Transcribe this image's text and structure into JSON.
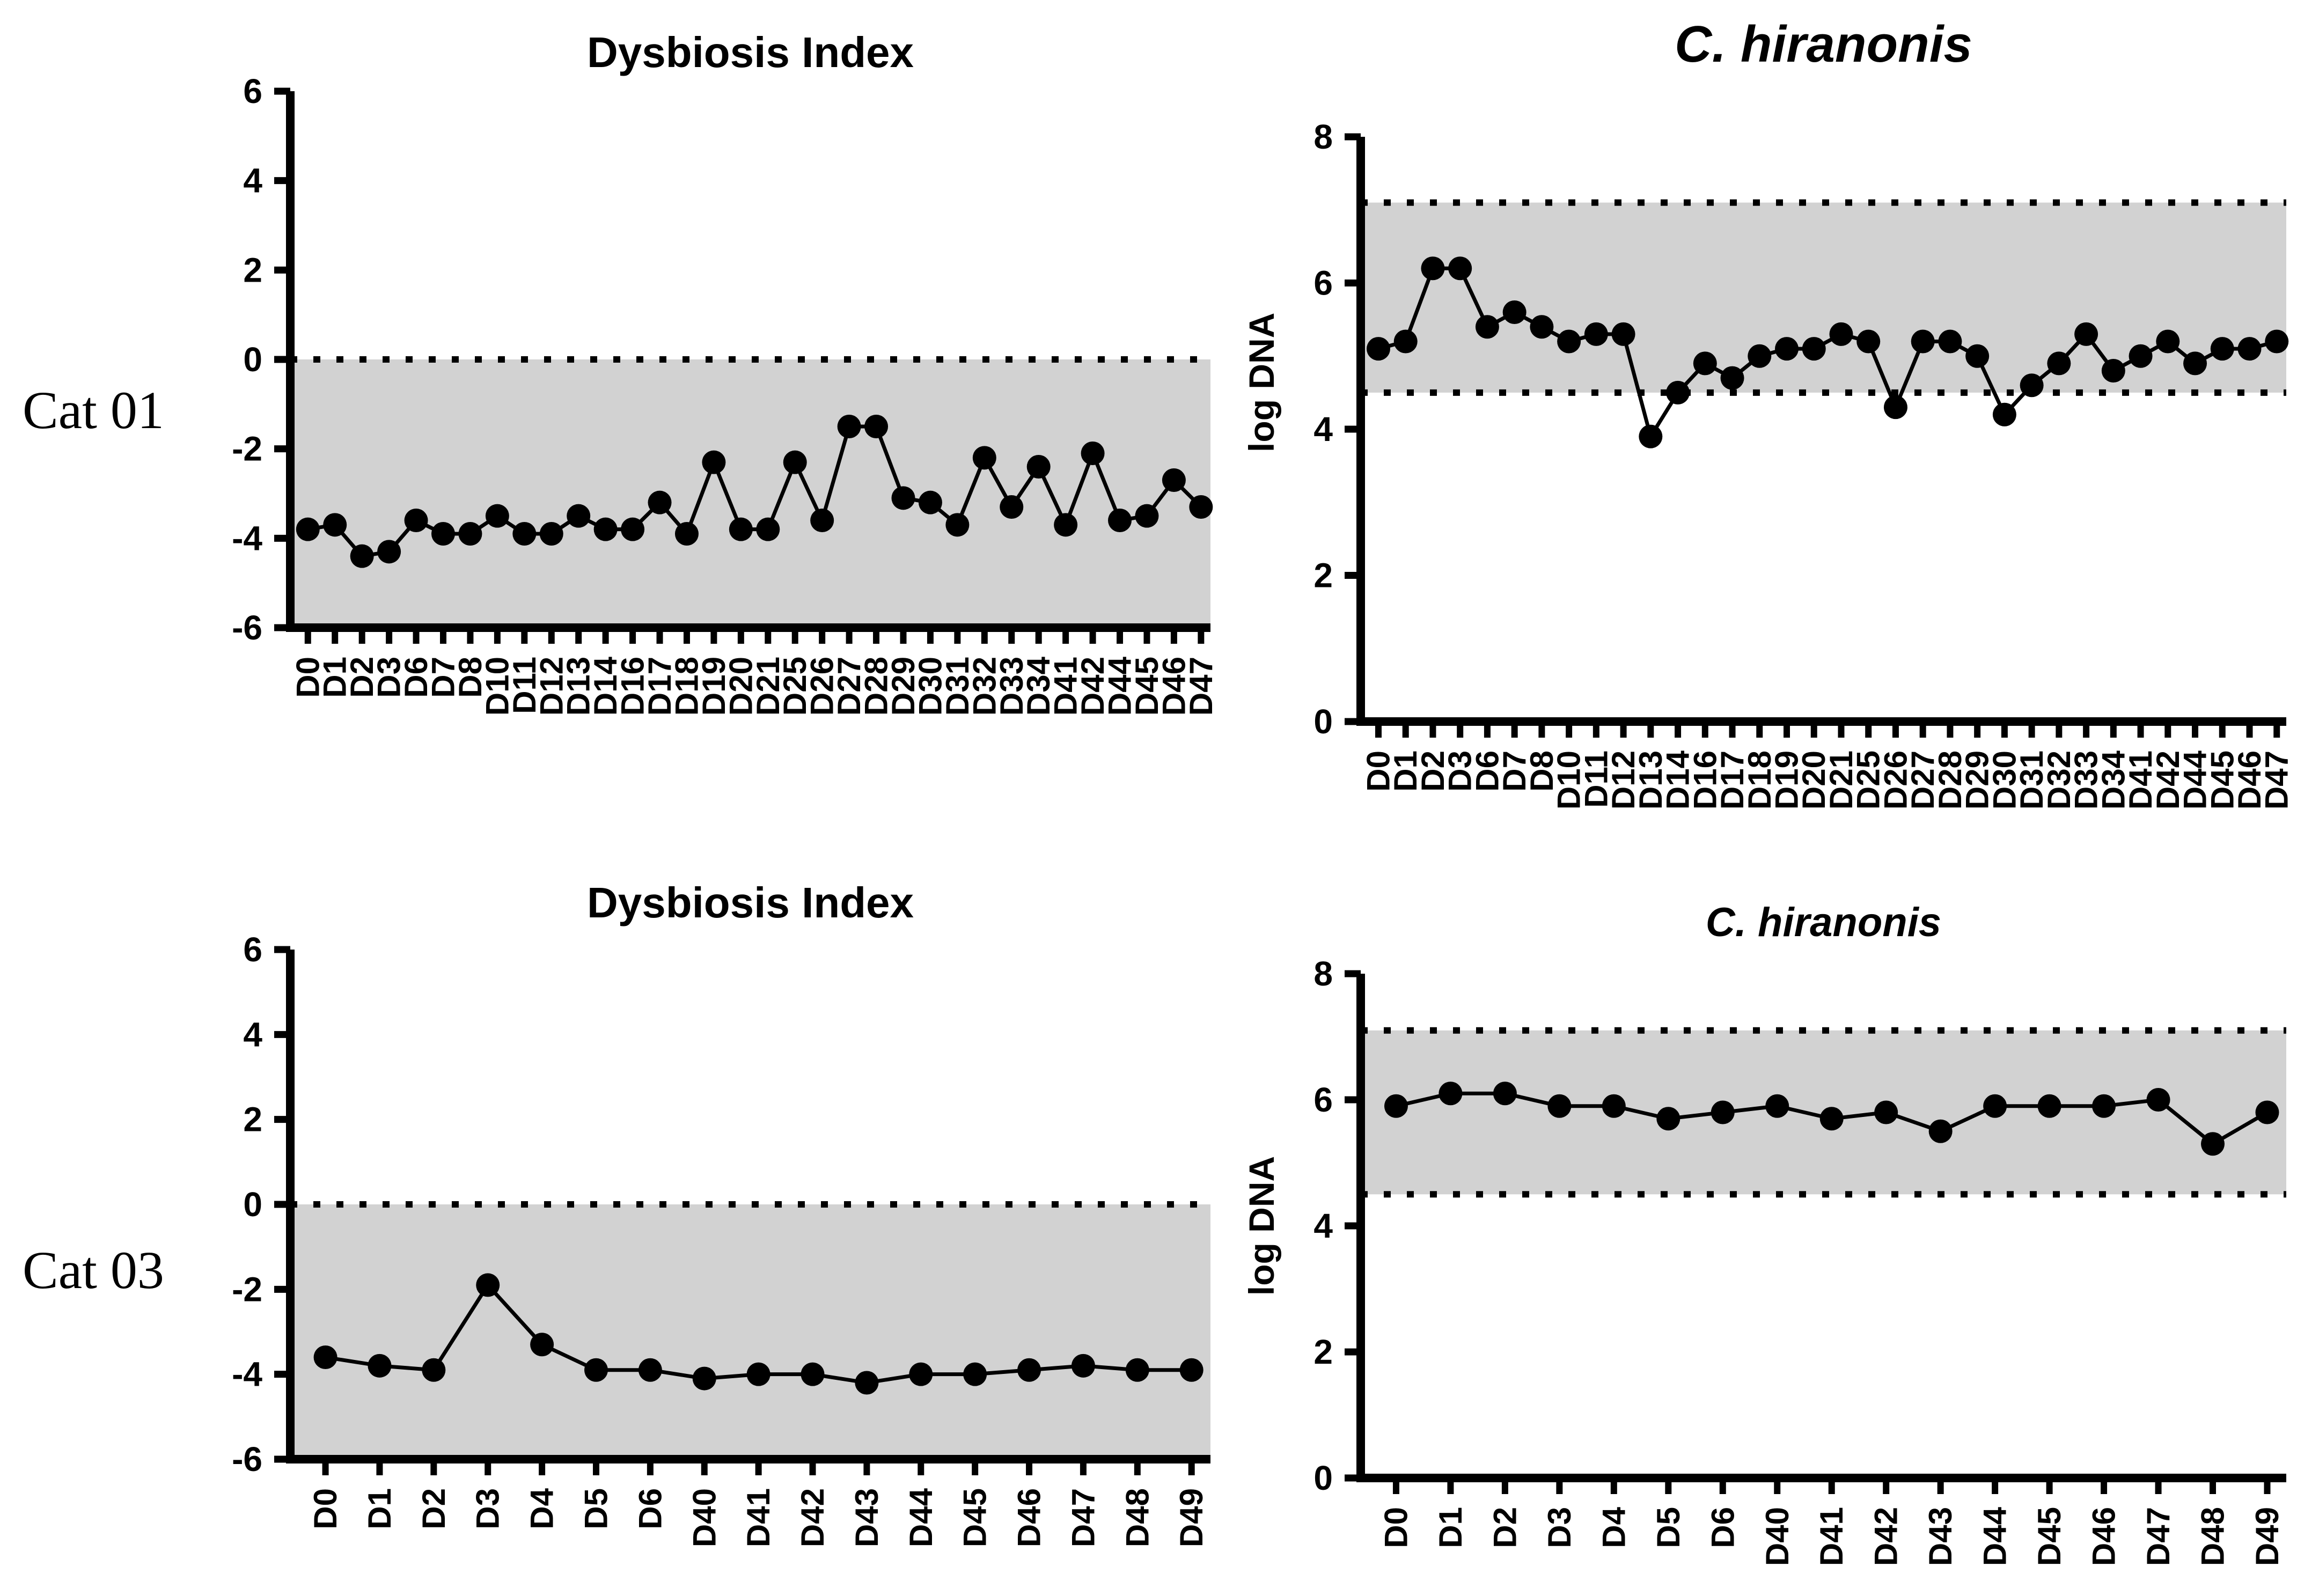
{
  "figure": {
    "background_color": "#ffffff",
    "band_color": "#d2d2d2",
    "line_color": "#000000"
  },
  "rows": [
    {
      "label": "Cat 01"
    },
    {
      "label": "Cat 03"
    }
  ],
  "chart_data": [
    {
      "id": "cat01-dysbiosis-index",
      "type": "line",
      "row_label": "Cat 01",
      "title": "Dysbiosis Index",
      "title_italic": false,
      "xlabel": "",
      "ylabel": "",
      "ylim": [
        -6,
        6
      ],
      "yticks": [
        -6,
        -4,
        -2,
        0,
        2,
        4,
        6
      ],
      "reference_band": [
        -6,
        0
      ],
      "dotted_lines": [
        0
      ],
      "grid": false,
      "legend": false,
      "categories": [
        "D0",
        "D1",
        "D2",
        "D3",
        "D6",
        "D7",
        "D8",
        "D10",
        "D11",
        "D12",
        "D13",
        "D14",
        "D16",
        "D17",
        "D18",
        "D19",
        "D20",
        "D21",
        "D25",
        "D26",
        "D27",
        "D28",
        "D29",
        "D30",
        "D31",
        "D32",
        "D33",
        "D34",
        "D41",
        "D42",
        "D44",
        "D45",
        "D46",
        "D47"
      ],
      "values": [
        -3.8,
        -3.7,
        -4.4,
        -4.3,
        -3.6,
        -3.9,
        -3.9,
        -3.5,
        -3.9,
        -3.9,
        -3.5,
        -3.8,
        -3.8,
        -3.2,
        -3.9,
        -2.3,
        -3.8,
        -3.8,
        -2.3,
        -3.6,
        -1.5,
        -1.5,
        -3.1,
        -3.2,
        -3.7,
        -2.2,
        -3.3,
        -2.4,
        -3.7,
        -2.1,
        -3.6,
        -3.5,
        -2.7,
        -3.3
      ]
    },
    {
      "id": "cat01-c-hiranonis",
      "type": "line",
      "row_label": "Cat 01",
      "title": "C. hiranonis",
      "title_italic": true,
      "xlabel": "",
      "ylabel": "log DNA",
      "ylim": [
        0,
        8
      ],
      "yticks": [
        0,
        2,
        4,
        6,
        8
      ],
      "reference_band": [
        4.5,
        7.1
      ],
      "dotted_lines": [
        4.5,
        7.1
      ],
      "grid": false,
      "legend": false,
      "categories": [
        "D0",
        "D1",
        "D2",
        "D3",
        "D6",
        "D7",
        "D8",
        "D10",
        "D11",
        "D12",
        "D13",
        "D14",
        "D16",
        "D17",
        "D18",
        "D19",
        "D20",
        "D21",
        "D25",
        "D26",
        "D27",
        "D28",
        "D29",
        "D30",
        "D31",
        "D32",
        "D33",
        "D34",
        "D41",
        "D42",
        "D44",
        "D45",
        "D46",
        "D47"
      ],
      "values": [
        5.1,
        5.2,
        6.2,
        6.2,
        5.4,
        5.6,
        5.4,
        5.2,
        5.3,
        5.3,
        3.9,
        4.5,
        4.9,
        4.7,
        5.0,
        5.1,
        5.1,
        5.3,
        5.2,
        4.3,
        5.2,
        5.2,
        5.0,
        4.2,
        4.6,
        4.9,
        5.3,
        4.8,
        5.0,
        5.2,
        4.9,
        5.1,
        5.1,
        5.2
      ]
    },
    {
      "id": "cat03-dysbiosis-index",
      "type": "line",
      "row_label": "Cat 03",
      "title": "Dysbiosis Index",
      "title_italic": false,
      "xlabel": "",
      "ylabel": "",
      "ylim": [
        -6,
        6
      ],
      "yticks": [
        -6,
        -4,
        -2,
        0,
        2,
        4,
        6
      ],
      "reference_band": [
        -6,
        0
      ],
      "dotted_lines": [
        0
      ],
      "grid": false,
      "legend": false,
      "categories": [
        "D0",
        "D1",
        "D2",
        "D3",
        "D4",
        "D5",
        "D6",
        "D40",
        "D41",
        "D42",
        "D43",
        "D44",
        "D45",
        "D46",
        "D47",
        "D48",
        "D49"
      ],
      "values": [
        -3.6,
        -3.8,
        -3.9,
        -1.9,
        -3.3,
        -3.9,
        -3.9,
        -4.1,
        -4.0,
        -4.0,
        -4.2,
        -4.0,
        -4.0,
        -3.9,
        -3.8,
        -3.9,
        -3.9
      ]
    },
    {
      "id": "cat03-c-hiranonis",
      "type": "line",
      "row_label": "Cat 03",
      "title": "C. hiranonis",
      "title_italic": true,
      "xlabel": "",
      "ylabel": "log DNA",
      "ylim": [
        0,
        8
      ],
      "yticks": [
        0,
        2,
        4,
        6,
        8
      ],
      "reference_band": [
        4.5,
        7.1
      ],
      "dotted_lines": [
        4.5,
        7.1
      ],
      "grid": false,
      "legend": false,
      "categories": [
        "D0",
        "D1",
        "D2",
        "D3",
        "D4",
        "D5",
        "D6",
        "D40",
        "D41",
        "D42",
        "D43",
        "D44",
        "D45",
        "D46",
        "D47",
        "D48",
        "D49"
      ],
      "values": [
        5.9,
        6.1,
        6.1,
        5.9,
        5.9,
        5.7,
        5.8,
        5.9,
        5.7,
        5.8,
        5.5,
        5.9,
        5.9,
        5.9,
        6.0,
        5.3,
        5.8
      ]
    }
  ]
}
